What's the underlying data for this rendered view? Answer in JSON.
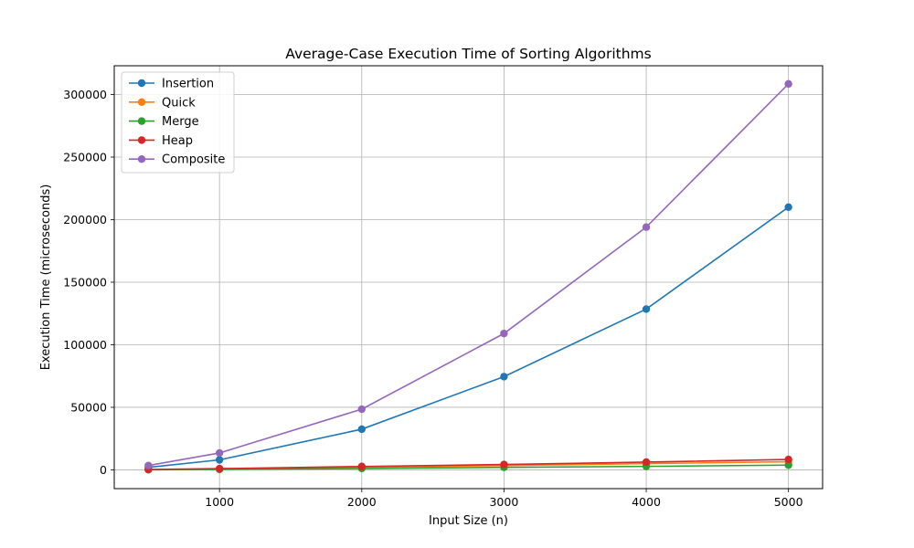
{
  "chart_data": {
    "type": "line",
    "title": "Average-Case Execution Time of Sorting Algorithms",
    "xlabel": "Input Size (n)",
    "ylabel": "Execution Time (microseconds)",
    "x": [
      500,
      1000,
      2000,
      3000,
      4000,
      5000
    ],
    "xlim": [
      260,
      5240
    ],
    "ylim": [
      -15000,
      323000
    ],
    "xticks": [
      1000,
      2000,
      3000,
      4000,
      5000
    ],
    "yticks": [
      0,
      50000,
      100000,
      150000,
      200000,
      250000,
      300000
    ],
    "grid": true,
    "legend_position": "top-left",
    "series": [
      {
        "name": "Insertion",
        "color": "#1f77b4",
        "values": [
          2000,
          8000,
          32500,
          74500,
          128500,
          210000
        ]
      },
      {
        "name": "Quick",
        "color": "#ff7f0e",
        "values": [
          200,
          600,
          2000,
          3500,
          5000,
          6500
        ]
      },
      {
        "name": "Merge",
        "color": "#2ca02c",
        "values": [
          150,
          400,
          1100,
          2000,
          2800,
          3800
        ]
      },
      {
        "name": "Heap",
        "color": "#d62728",
        "values": [
          300,
          1000,
          2700,
          4300,
          6200,
          8300
        ]
      },
      {
        "name": "Composite",
        "color": "#9467bd",
        "values": [
          3500,
          13500,
          48500,
          109000,
          194000,
          308500
        ]
      }
    ]
  }
}
